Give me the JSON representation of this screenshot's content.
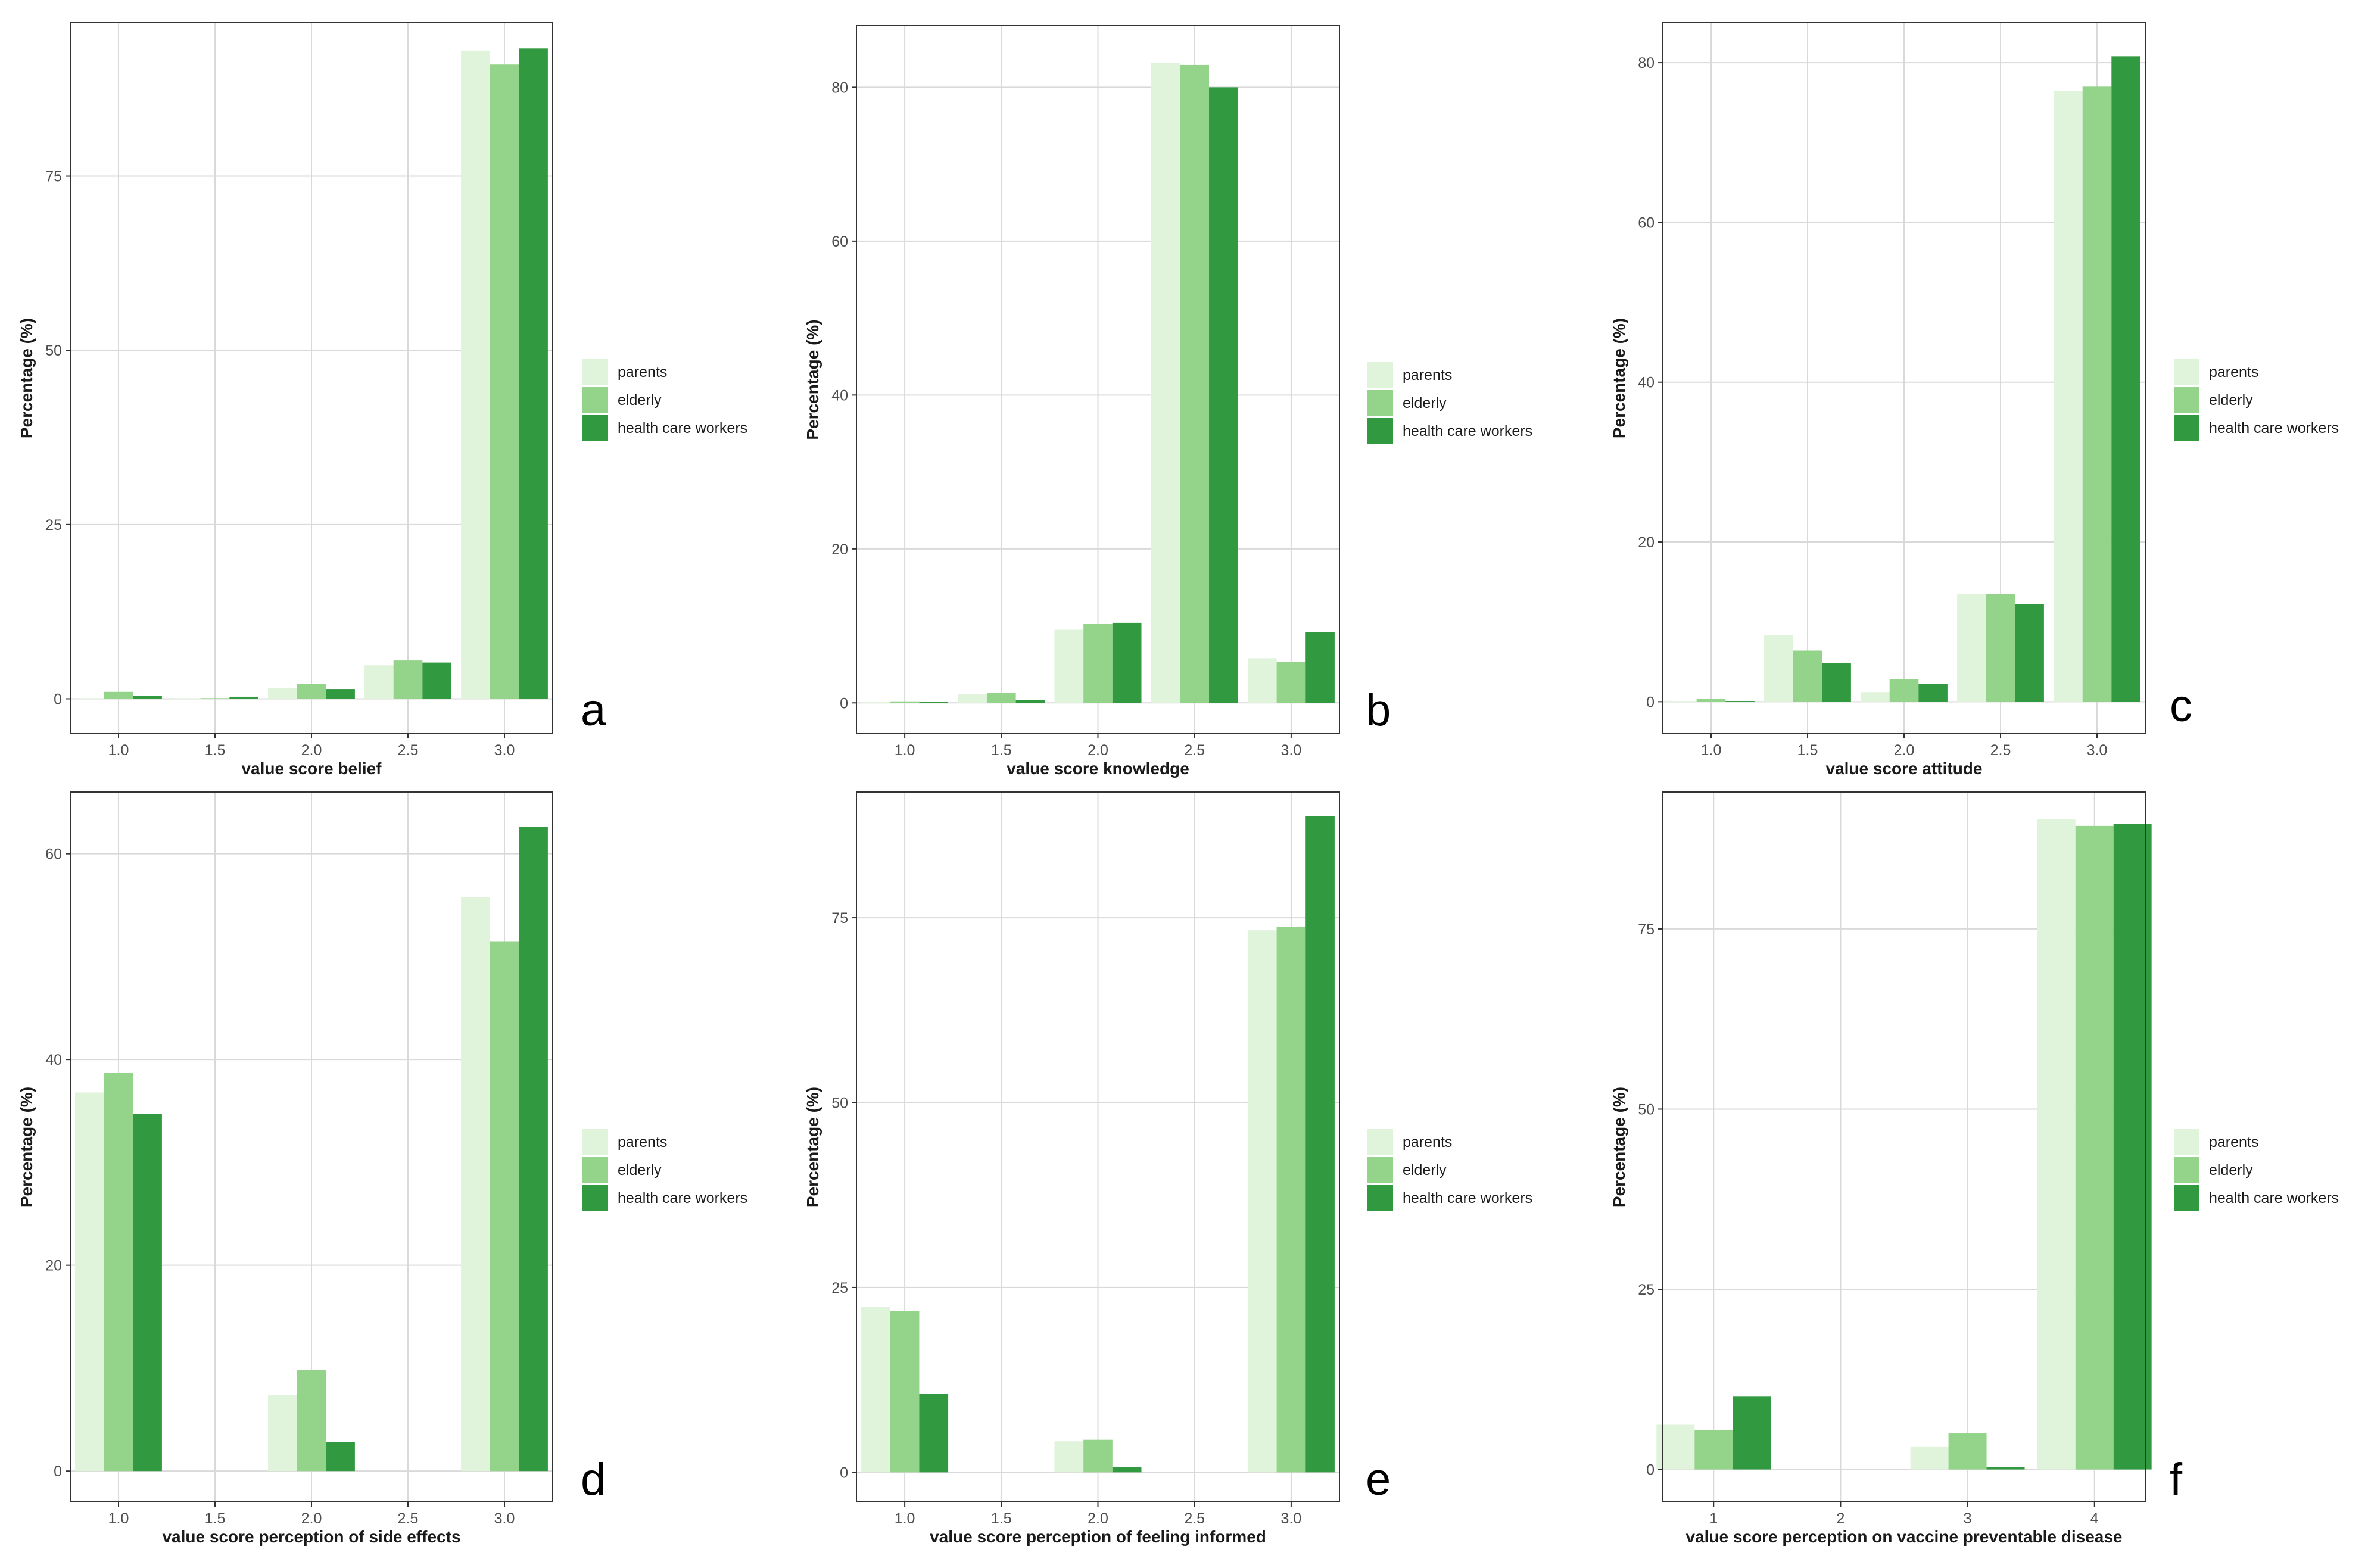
{
  "figure": {
    "colors": {
      "parents": "#e0f3db",
      "elderly": "#94d38a",
      "health care workers": "#31993f",
      "grid": "#d9d9d9",
      "border": "#333333"
    }
  },
  "chart_data": [
    {
      "type": "bar",
      "panel_label": "a",
      "xlabel": "value score belief",
      "ylabel": "Percentage (%)",
      "categories": [
        1.0,
        1.5,
        2.0,
        2.5,
        3.0
      ],
      "x_tick_labels": [
        "1.0",
        "1.5",
        "2.0",
        "2.5",
        "3.0"
      ],
      "x_range": [
        0.75,
        3.25
      ],
      "ylim": [
        -5,
        97
      ],
      "y_ticks": [
        0,
        25,
        50,
        75
      ],
      "legend": [
        "parents",
        "elderly",
        "health care workers"
      ],
      "legend_position": "right",
      "series": [
        {
          "name": "parents",
          "values": [
            0.1,
            0.1,
            1.5,
            4.8,
            93.0
          ]
        },
        {
          "name": "elderly",
          "values": [
            1.0,
            0.1,
            2.1,
            5.5,
            91.0
          ]
        },
        {
          "name": "health care workers",
          "values": [
            0.4,
            0.3,
            1.4,
            5.2,
            93.3
          ]
        }
      ]
    },
    {
      "type": "bar",
      "panel_label": "b",
      "xlabel": "value score knowledge",
      "ylabel": "Percentage (%)",
      "categories": [
        1.0,
        1.5,
        2.0,
        2.5,
        3.0
      ],
      "x_tick_labels": [
        "1.0",
        "1.5",
        "2.0",
        "2.5",
        "3.0"
      ],
      "x_range": [
        0.75,
        3.25
      ],
      "ylim": [
        -4,
        88
      ],
      "y_ticks": [
        0,
        20,
        40,
        60,
        80
      ],
      "legend": [
        "parents",
        "elderly",
        "health care workers"
      ],
      "legend_position": "right",
      "series": [
        {
          "name": "parents",
          "values": [
            0.1,
            1.1,
            9.5,
            83.2,
            5.8
          ]
        },
        {
          "name": "elderly",
          "values": [
            0.2,
            1.3,
            10.3,
            82.9,
            5.3
          ]
        },
        {
          "name": "health care workers",
          "values": [
            0.1,
            0.4,
            10.4,
            80.0,
            9.2
          ]
        }
      ]
    },
    {
      "type": "bar",
      "panel_label": "c",
      "xlabel": "value score attitude",
      "ylabel": "Percentage (%)",
      "categories": [
        1.0,
        1.5,
        2.0,
        2.5,
        3.0
      ],
      "x_tick_labels": [
        "1.0",
        "1.5",
        "2.0",
        "2.5",
        "3.0"
      ],
      "x_range": [
        0.75,
        3.25
      ],
      "ylim": [
        -4,
        85
      ],
      "y_ticks": [
        0,
        20,
        40,
        60,
        80
      ],
      "legend": [
        "parents",
        "elderly",
        "health care workers"
      ],
      "legend_position": "right",
      "series": [
        {
          "name": "parents",
          "values": [
            0.1,
            8.3,
            1.2,
            13.5,
            76.5
          ]
        },
        {
          "name": "elderly",
          "values": [
            0.4,
            6.4,
            2.8,
            13.5,
            77.0
          ]
        },
        {
          "name": "health care workers",
          "values": [
            0.1,
            4.8,
            2.2,
            12.2,
            80.8
          ]
        }
      ]
    },
    {
      "type": "bar",
      "panel_label": "d",
      "xlabel": "value score perception of side effects",
      "ylabel": "Percentage (%)",
      "categories": [
        1.0,
        1.5,
        2.0,
        2.5,
        3.0
      ],
      "x_tick_labels": [
        "1.0",
        "1.5",
        "2.0",
        "2.5",
        "3.0"
      ],
      "x_range": [
        0.75,
        3.25
      ],
      "ylim": [
        -3,
        66
      ],
      "y_ticks": [
        0,
        20,
        40,
        60
      ],
      "legend": [
        "parents",
        "elderly",
        "health care workers"
      ],
      "legend_position": "right",
      "series": [
        {
          "name": "parents",
          "values": [
            36.8,
            0,
            7.4,
            0,
            55.8
          ]
        },
        {
          "name": "elderly",
          "values": [
            38.7,
            0,
            9.8,
            0,
            51.5
          ]
        },
        {
          "name": "health care workers",
          "values": [
            34.7,
            0,
            2.8,
            0,
            62.6
          ]
        }
      ]
    },
    {
      "type": "bar",
      "panel_label": "e",
      "xlabel": "value score perception of feeling informed",
      "ylabel": "Percentage (%)",
      "categories": [
        1.0,
        1.5,
        2.0,
        2.5,
        3.0
      ],
      "x_tick_labels": [
        "1.0",
        "1.5",
        "2.0",
        "2.5",
        "3.0"
      ],
      "x_range": [
        0.75,
        3.25
      ],
      "ylim": [
        -4,
        92
      ],
      "y_ticks": [
        0,
        25,
        50,
        75
      ],
      "legend": [
        "parents",
        "elderly",
        "health care workers"
      ],
      "legend_position": "right",
      "series": [
        {
          "name": "parents",
          "values": [
            22.4,
            0,
            4.2,
            0,
            73.3
          ]
        },
        {
          "name": "elderly",
          "values": [
            21.8,
            0,
            4.4,
            0,
            73.8
          ]
        },
        {
          "name": "health care workers",
          "values": [
            10.6,
            0,
            0.7,
            0,
            88.7
          ]
        }
      ]
    },
    {
      "type": "bar",
      "panel_label": "f",
      "xlabel": "value score perception on vaccine preventable disease",
      "ylabel": "Percentage (%)",
      "categories": [
        1,
        2,
        3,
        4
      ],
      "x_tick_labels": [
        "1",
        "2",
        "3",
        "4"
      ],
      "x_range": [
        0.6,
        4.4
      ],
      "ylim": [
        -4.5,
        94
      ],
      "y_ticks": [
        0,
        25,
        50,
        75
      ],
      "legend": [
        "parents",
        "elderly",
        "health care workers"
      ],
      "legend_position": "right",
      "series": [
        {
          "name": "parents",
          "values": [
            6.2,
            0,
            3.2,
            90.2
          ]
        },
        {
          "name": "elderly",
          "values": [
            5.5,
            0,
            5.0,
            89.3
          ]
        },
        {
          "name": "health care workers",
          "values": [
            10.1,
            0,
            0.3,
            89.6
          ]
        }
      ]
    }
  ]
}
